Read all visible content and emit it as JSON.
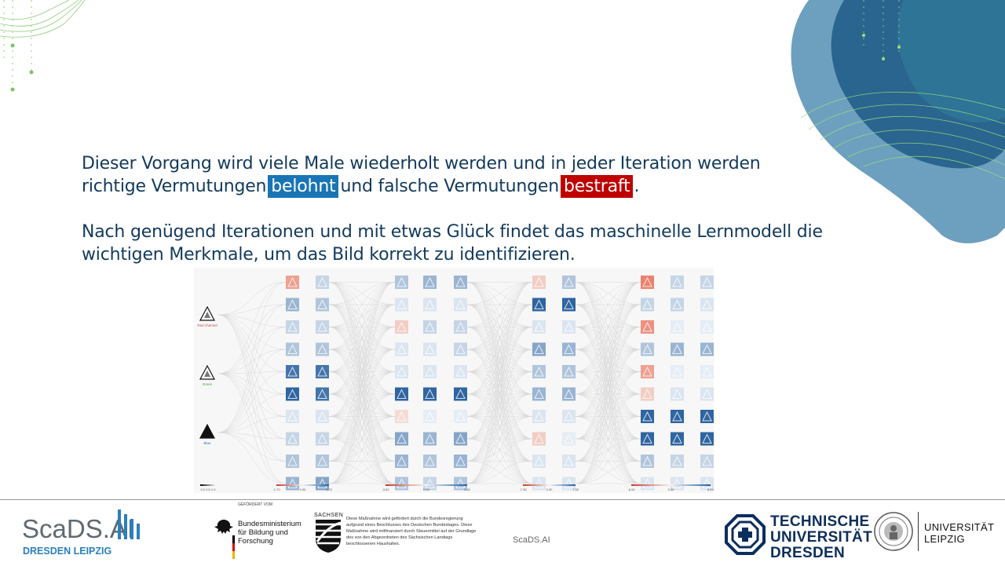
{
  "paragraphs": {
    "p1_part1": "Dieser Vorgang wird viele Male wiederholt werden und in jeder Iteration werden",
    "p1_part2": "richtige Vermutungen",
    "p1_reward": "belohnt",
    "p1_part3": "und falsche Vermutungen",
    "p1_punish": "bestraft",
    "p1_end": ".",
    "p2_line1": "Nach genügend Iterationen und mit etwas Glück findet das maschinelle Lernmodell die",
    "p2_line2": "wichtigen Merkmale, um das Bild korrekt zu identifizieren."
  },
  "figure": {
    "input_labels": [
      "Red channel",
      "Green",
      "Blue"
    ],
    "first_scale": [
      "0.0",
      "0.5",
      "1.0"
    ],
    "layer_scales": [
      [
        "-1.70",
        "0.00",
        "1.70"
      ],
      [
        "-3.82",
        "0.00",
        "3.82"
      ],
      [
        "-7.35",
        "0.00",
        "7.35"
      ],
      [
        "-8.54",
        "0.00",
        "8.54"
      ]
    ]
  },
  "footer": {
    "scads_name": "ScaDS.AI",
    "scads_sub": "DRESDEN LEIPZIG",
    "bmbf_small": "GEFÖRDERT VOM",
    "bmbf_name": "Bundesministerium für Bildung und Forschung",
    "sachsen_label": "SACHSEN",
    "sachsen_note": "Diese Maßnahme wird gefördert durch die Bundesregierung aufgrund eines Beschlusses des Deutschen Bundestages. Diese Maßnahme wird mitfinanziert durch Steuermittel auf der Grundlage des von den Abgeordneten des Sächsischen Landtags beschlossenen Haushaltes.",
    "center_text": "ScaDS.AI",
    "tud_line1": "TECHNISCHE",
    "tud_line2": "UNIVERSITÄT",
    "tud_line3": "DRESDEN",
    "leipzig_line1": "UNIVERSITÄT",
    "leipzig_line2": "LEIPZIG"
  },
  "colors": {
    "text": "#123a5c",
    "reward": "#1a75b5",
    "punish": "#c00000",
    "positive": "#1f5f9f",
    "negative": "#d9533a"
  }
}
